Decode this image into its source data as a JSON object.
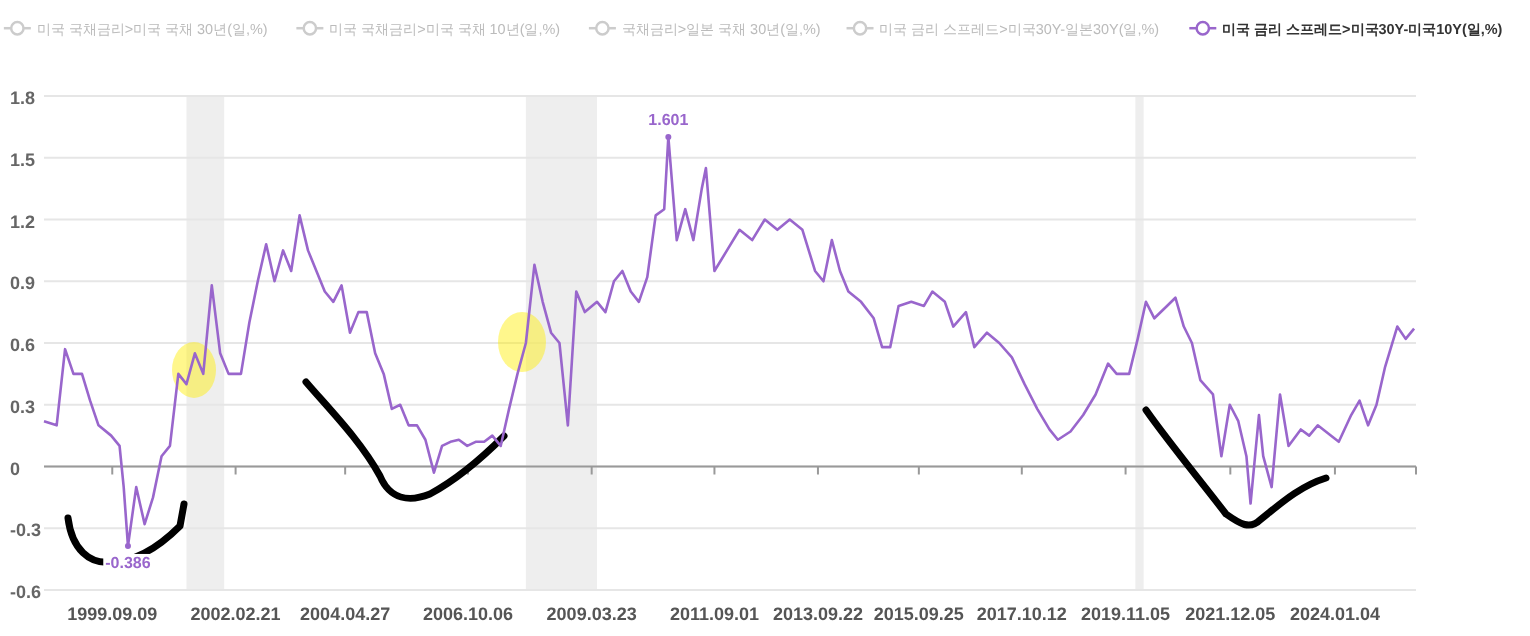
{
  "chart_data": {
    "type": "line",
    "series": [
      {
        "name": "미국 국채금리>미국 국채 30년(일,%)",
        "color": "#cccccc"
      },
      {
        "name": "미국 국채금리>미국 국채 10년(일,%)",
        "color": "#cccccc"
      },
      {
        "name": "국채금리>일본 국채 30년(일,%)",
        "color": "#cccccc"
      },
      {
        "name": "미국 금리 스프레드>미국30Y-일본30Y(일,%)",
        "color": "#cccccc"
      },
      {
        "name": "미국 금리 스프레드>미국30Y-미국10Y(일,%)",
        "color": "#9966cc",
        "x": [
          "1998-05",
          "1998-08",
          "1998-10",
          "1998-12",
          "1999-02",
          "1999-04",
          "1999-06",
          "1999-09",
          "1999-11",
          "1999-12",
          "2000-01",
          "2000-03",
          "2000-05",
          "2000-07",
          "2000-09",
          "2000-11",
          "2001-01",
          "2001-03",
          "2001-05",
          "2001-07",
          "2001-09",
          "2001-11",
          "2002-01",
          "2002-04",
          "2002-06",
          "2002-08",
          "2002-10",
          "2002-12",
          "2003-02",
          "2003-04",
          "2003-06",
          "2003-08",
          "2003-10",
          "2003-12",
          "2004-02",
          "2004-04",
          "2004-06",
          "2004-08",
          "2004-10",
          "2004-12",
          "2005-02",
          "2005-04",
          "2005-06",
          "2005-08",
          "2005-10",
          "2005-12",
          "2006-02",
          "2006-04",
          "2006-06",
          "2006-08",
          "2006-10",
          "2006-12",
          "2007-02",
          "2007-04",
          "2007-06",
          "2007-08",
          "2007-10",
          "2007-12",
          "2008-02",
          "2008-04",
          "2008-06",
          "2008-08",
          "2008-10",
          "2008-12",
          "2009-02",
          "2009-05",
          "2009-07",
          "2009-09",
          "2009-11",
          "2010-01",
          "2010-03",
          "2010-05",
          "2010-07",
          "2010-09",
          "2010-10",
          "2010-12",
          "2011-02",
          "2011-04",
          "2011-06",
          "2011-07",
          "2011-09",
          "2011-12",
          "2012-03",
          "2012-06",
          "2012-09",
          "2012-12",
          "2013-03",
          "2013-06",
          "2013-09",
          "2013-11",
          "2014-01",
          "2014-03",
          "2014-05",
          "2014-08",
          "2014-11",
          "2015-01",
          "2015-03",
          "2015-05",
          "2015-08",
          "2015-11",
          "2016-01",
          "2016-04",
          "2016-06",
          "2016-09",
          "2016-11",
          "2017-02",
          "2017-05",
          "2017-08",
          "2017-11",
          "2018-02",
          "2018-05",
          "2018-07",
          "2018-10",
          "2019-01",
          "2019-04",
          "2019-07",
          "2019-09",
          "2019-12",
          "2020-02",
          "2020-04",
          "2020-06",
          "2020-09",
          "2020-11",
          "2021-01",
          "2021-03",
          "2021-05",
          "2021-08",
          "2021-10",
          "2021-12",
          "2022-02",
          "2022-04",
          "2022-05",
          "2022-07",
          "2022-08",
          "2022-10",
          "2022-12",
          "2023-02",
          "2023-05",
          "2023-07",
          "2023-09",
          "2024-02",
          "2024-05",
          "2024-07",
          "2024-09",
          "2024-11",
          "2025-01",
          "2025-04",
          "2025-06",
          "2025-08"
        ],
        "values": [
          0.22,
          0.2,
          0.57,
          0.45,
          0.45,
          0.32,
          0.2,
          0.15,
          0.1,
          -0.1,
          -0.386,
          -0.1,
          -0.28,
          -0.15,
          0.05,
          0.1,
          0.45,
          0.4,
          0.55,
          0.45,
          0.88,
          0.55,
          0.45,
          0.45,
          0.7,
          0.9,
          1.08,
          0.9,
          1.05,
          0.95,
          1.22,
          1.05,
          0.95,
          0.85,
          0.8,
          0.88,
          0.65,
          0.75,
          0.75,
          0.55,
          0.45,
          0.28,
          0.3,
          0.2,
          0.2,
          0.13,
          -0.03,
          0.1,
          0.12,
          0.13,
          0.1,
          0.12,
          0.12,
          0.15,
          0.1,
          0.28,
          0.45,
          0.6,
          0.98,
          0.8,
          0.65,
          0.6,
          0.2,
          0.85,
          0.75,
          0.8,
          0.75,
          0.9,
          0.95,
          0.85,
          0.8,
          0.92,
          1.22,
          1.25,
          1.601,
          1.1,
          1.25,
          1.1,
          1.35,
          1.45,
          0.95,
          1.05,
          1.15,
          1.1,
          1.2,
          1.15,
          1.2,
          1.15,
          0.95,
          0.9,
          1.1,
          0.95,
          0.85,
          0.8,
          0.72,
          0.58,
          0.58,
          0.78,
          0.8,
          0.78,
          0.85,
          0.8,
          0.68,
          0.75,
          0.58,
          0.65,
          0.6,
          0.53,
          0.4,
          0.28,
          0.18,
          0.13,
          0.17,
          0.25,
          0.35,
          0.5,
          0.45,
          0.45,
          0.62,
          0.8,
          0.72,
          0.78,
          0.82,
          0.68,
          0.6,
          0.42,
          0.35,
          0.05,
          0.3,
          0.22,
          0.05,
          -0.18,
          0.25,
          0.05,
          -0.1,
          0.35,
          0.1,
          0.18,
          0.15,
          0.2,
          0.12,
          0.25,
          0.32,
          0.2,
          0.3,
          0.48,
          0.68,
          0.62,
          0.67
        ]
      }
    ],
    "xlim": [
      "1998-05-01",
      "2025-08-15"
    ],
    "xticks": [
      {
        "value": "1999-09-09",
        "label": "1999.09.09"
      },
      {
        "value": "2002-02-21",
        "label": "2002.02.21"
      },
      {
        "value": "2004-04-27",
        "label": "2004.04.27"
      },
      {
        "value": "2006-10-06",
        "label": "2006.10.06"
      },
      {
        "value": "2009-03-23",
        "label": "2009.03.23"
      },
      {
        "value": "2011-09-01",
        "label": "2011.09.01"
      },
      {
        "value": "2013-09-22",
        "label": "2013.09.22"
      },
      {
        "value": "2015-09-25",
        "label": "2015.09.25"
      },
      {
        "value": "2017-10-12",
        "label": "2017.10.12"
      },
      {
        "value": "2019-11-05",
        "label": "2019.11.05"
      },
      {
        "value": "2021-12-05",
        "label": "2021.12.05"
      },
      {
        "value": "2024-01-04",
        "label": "2024.01.04"
      }
    ],
    "ylim": [
      -0.6,
      1.8
    ],
    "yticks": [
      -0.6,
      -0.3,
      0,
      0.3,
      0.6,
      0.9,
      1.2,
      1.5,
      1.8
    ],
    "grid": "y",
    "legend": "top",
    "marker": "none",
    "line_style": "solid",
    "bands": [
      {
        "axis": "x",
        "from": "2001-03-01",
        "to": "2001-11-30",
        "color": "#eeeeee"
      },
      {
        "axis": "x",
        "from": "2007-12-01",
        "to": "2009-05-01",
        "color": "#eeeeee"
      },
      {
        "axis": "x",
        "from": "2020-01-15",
        "to": "2020-03-15",
        "color": "#eeeeee"
      }
    ],
    "annotations": [
      {
        "text": "1.601",
        "x": "2010-10",
        "y": 1.601
      },
      {
        "text": "-0.386",
        "x": "2000-01",
        "y": -0.386
      }
    ]
  }
}
